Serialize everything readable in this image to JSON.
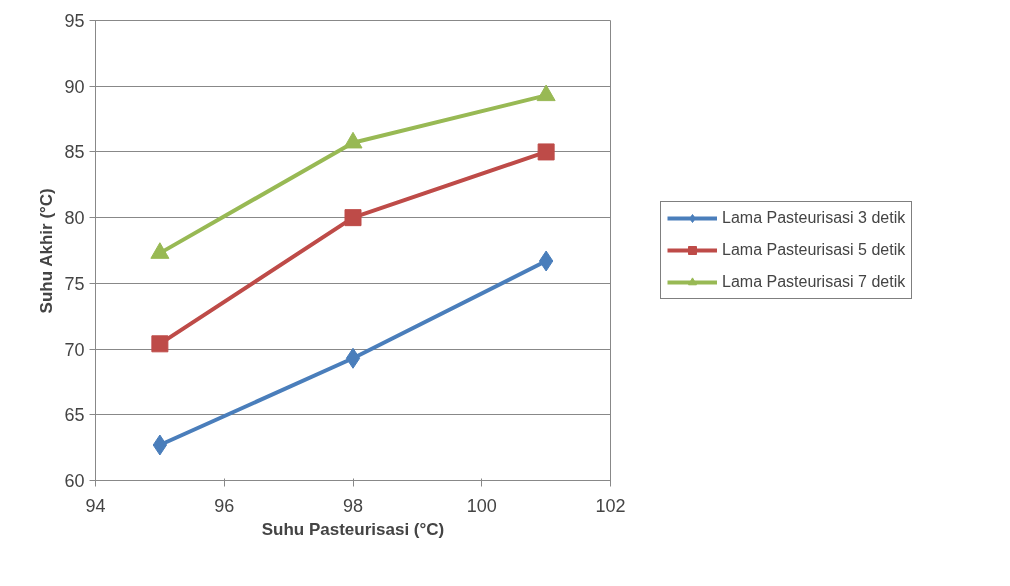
{
  "chart_data": {
    "type": "line",
    "xlabel": "Suhu Pasteurisasi (°C)",
    "ylabel": "Suhu Akhir (°C)",
    "x": [
      95,
      98,
      101
    ],
    "series": [
      {
        "name": "Lama Pasteurisasi 3 detik",
        "color": "#4a7ebb",
        "marker": "diamond",
        "values": [
          62.7,
          69.3,
          76.7
        ]
      },
      {
        "name": "Lama Pasteurisasi 5 detik",
        "color": "#be4b48",
        "marker": "square",
        "values": [
          70.4,
          80.0,
          85.0
        ]
      },
      {
        "name": "Lama Pasteurisasi 7 detik",
        "color": "#98b954",
        "marker": "triangle",
        "values": [
          77.3,
          85.7,
          89.3
        ]
      }
    ],
    "xlim": [
      94,
      102
    ],
    "xticks": [
      94,
      96,
      98,
      100,
      102
    ],
    "ylim": [
      60,
      95
    ],
    "yticks": [
      60,
      65,
      70,
      75,
      80,
      85,
      90,
      95
    ],
    "grid": "y",
    "legend": "right",
    "line_style": "solid"
  }
}
